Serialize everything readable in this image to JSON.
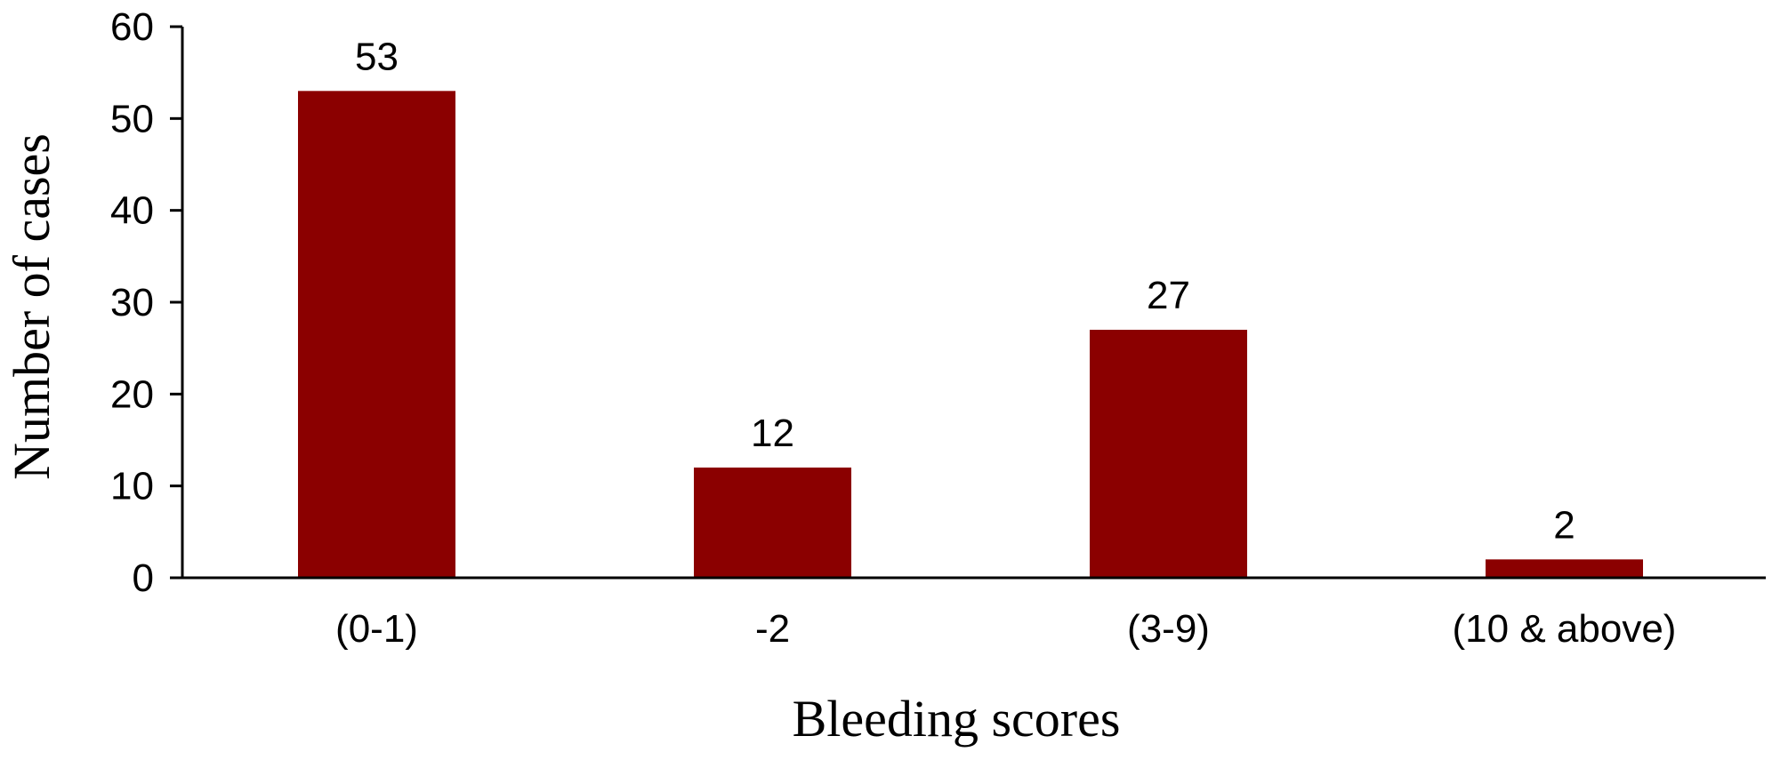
{
  "chart_data": {
    "type": "bar",
    "title": "",
    "xlabel": "Bleeding  scores",
    "ylabel": "Number of cases",
    "categories": [
      "(0-1)",
      "-2",
      "(3-9)",
      "(10 & above)"
    ],
    "values": [
      53,
      12,
      27,
      2
    ],
    "data_labels": [
      "53",
      "12",
      "27",
      "2"
    ],
    "ylim": [
      0,
      60
    ],
    "yticks": [
      0,
      10,
      20,
      30,
      40,
      50,
      60
    ],
    "ytick_labels": [
      "0",
      "10",
      "20",
      "30",
      "40",
      "50",
      "60"
    ],
    "bar_color": "#8B0000",
    "grid": false,
    "legend": "none"
  }
}
